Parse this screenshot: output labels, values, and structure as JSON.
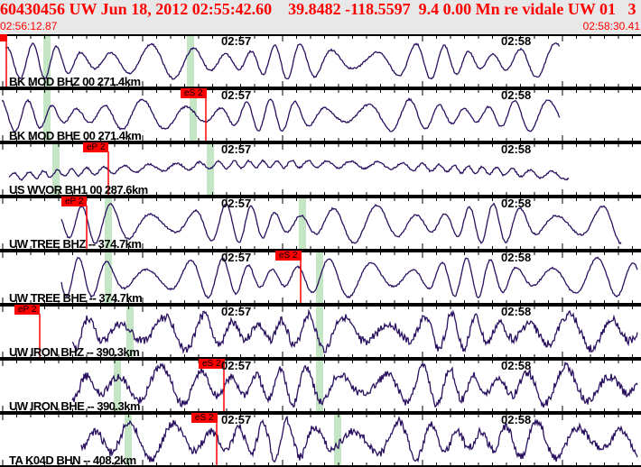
{
  "header": {
    "title": "60430456 UW Jun 18, 2012 02:55:42.60    39.8482 -118.5597  9.4 0.00 Mn re vidale UW 01   3",
    "start_time": "02:56:12.87",
    "end_time": "02:58:30.41"
  },
  "colors": {
    "trace": "#2a1060",
    "pick": "#ff0000",
    "window": "#c4e6c4",
    "header_text": "#ff0000",
    "header_bg": "#e8e8e8"
  },
  "time_marks": [
    "02:57",
    "02:58"
  ],
  "traces": [
    {
      "label": "BK MOD BHZ 00 271.4km",
      "pick": ""
    },
    {
      "label": "BK MOD BHE 00 271.4km",
      "pick": "eS 2"
    },
    {
      "label": "US WVOR BH1 00 287.6km",
      "pick": "eP 2"
    },
    {
      "label": "UW TREE BHZ -- 374.7km",
      "pick": "eP 2"
    },
    {
      "label": "UW TREE BHE -- 374.7km",
      "pick": "eS 2"
    },
    {
      "label": "UW IRON BHZ -- 390.3km",
      "pick": "eP 2"
    },
    {
      "label": "UW IRON BHE -- 390.3km",
      "pick": "eS 2"
    },
    {
      "label": "TA K04D BHN -- 408.2km",
      "pick": "eS 2"
    }
  ]
}
